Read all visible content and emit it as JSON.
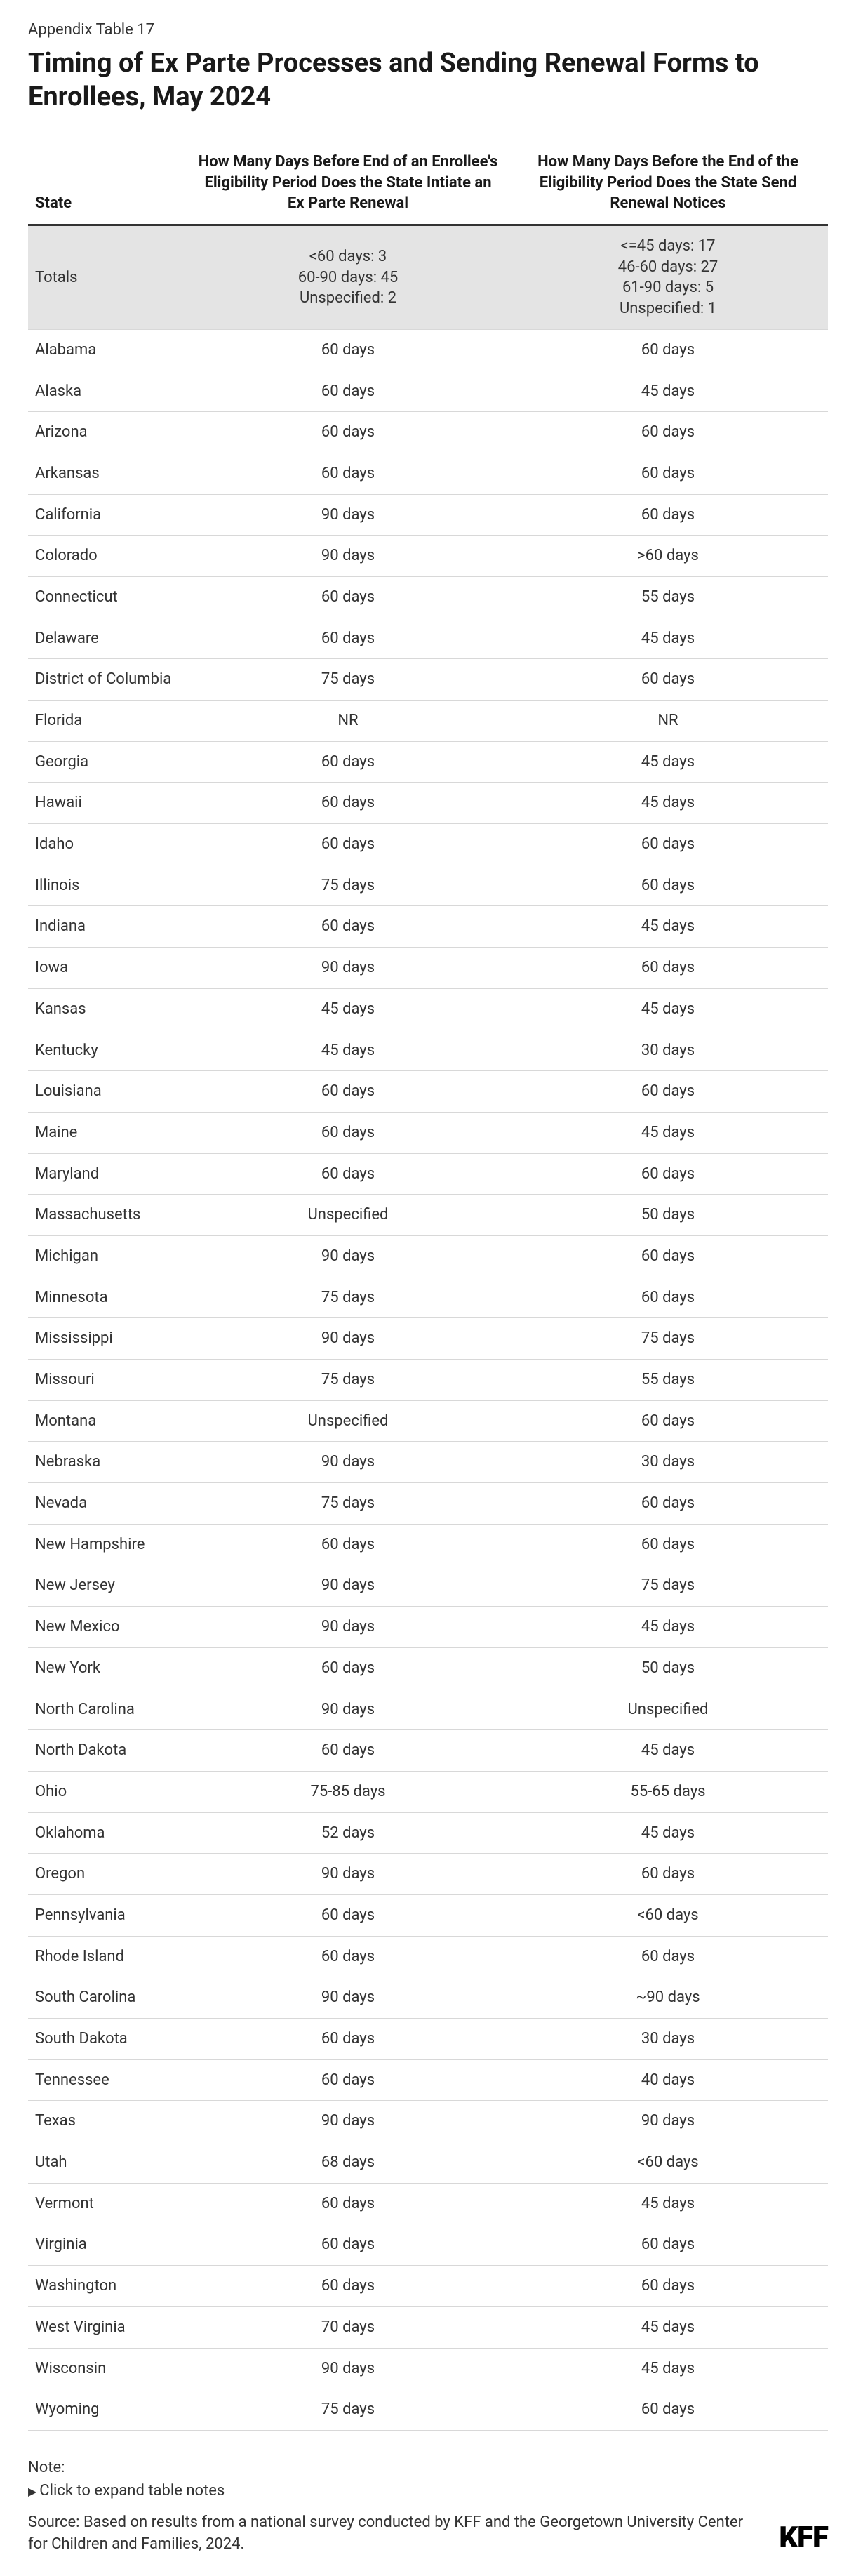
{
  "appendix_label": "Appendix Table 17",
  "title": "Timing of Ex Parte Processes and Sending Renewal Forms to Enrollees, May 2024",
  "columns": [
    "State",
    "How Many Days Before End of an Enrollee's Eligibility Period Does the State Intiate an Ex Parte Renewal",
    "How Many Days Before the End of the Eligibility Period Does the State Send Renewal Notices"
  ],
  "totals": {
    "label": "Totals",
    "col1": "<60 days: 3\n60-90 days: 45\nUnspecified: 2",
    "col2": "<=45 days: 17\n46-60 days: 27\n61-90 days: 5\nUnspecified: 1"
  },
  "rows": [
    {
      "state": "Alabama",
      "c1": "60 days",
      "c2": "60 days"
    },
    {
      "state": "Alaska",
      "c1": "60 days",
      "c2": "45 days"
    },
    {
      "state": "Arizona",
      "c1": "60 days",
      "c2": "60 days"
    },
    {
      "state": "Arkansas",
      "c1": "60 days",
      "c2": "60 days"
    },
    {
      "state": "California",
      "c1": "90 days",
      "c2": "60 days"
    },
    {
      "state": "Colorado",
      "c1": "90 days",
      "c2": ">60 days"
    },
    {
      "state": "Connecticut",
      "c1": "60 days",
      "c2": "55 days"
    },
    {
      "state": "Delaware",
      "c1": "60 days",
      "c2": "45 days"
    },
    {
      "state": "District of Columbia",
      "c1": "75 days",
      "c2": "60 days"
    },
    {
      "state": "Florida",
      "c1": "NR",
      "c2": "NR"
    },
    {
      "state": "Georgia",
      "c1": "60 days",
      "c2": "45 days"
    },
    {
      "state": "Hawaii",
      "c1": "60 days",
      "c2": "45 days"
    },
    {
      "state": "Idaho",
      "c1": "60 days",
      "c2": "60 days"
    },
    {
      "state": "Illinois",
      "c1": "75 days",
      "c2": "60 days"
    },
    {
      "state": "Indiana",
      "c1": "60 days",
      "c2": "45 days"
    },
    {
      "state": "Iowa",
      "c1": "90 days",
      "c2": "60 days"
    },
    {
      "state": "Kansas",
      "c1": "45 days",
      "c2": "45 days"
    },
    {
      "state": "Kentucky",
      "c1": "45 days",
      "c2": "30 days"
    },
    {
      "state": "Louisiana",
      "c1": "60 days",
      "c2": "60 days"
    },
    {
      "state": "Maine",
      "c1": "60 days",
      "c2": "45 days"
    },
    {
      "state": "Maryland",
      "c1": "60 days",
      "c2": "60 days"
    },
    {
      "state": "Massachusetts",
      "c1": "Unspecified",
      "c2": "50 days"
    },
    {
      "state": "Michigan",
      "c1": "90 days",
      "c2": "60 days"
    },
    {
      "state": "Minnesota",
      "c1": "75 days",
      "c2": "60 days"
    },
    {
      "state": "Mississippi",
      "c1": "90 days",
      "c2": "75 days"
    },
    {
      "state": "Missouri",
      "c1": "75 days",
      "c2": "55 days"
    },
    {
      "state": "Montana",
      "c1": "Unspecified",
      "c2": "60 days"
    },
    {
      "state": "Nebraska",
      "c1": "90 days",
      "c2": "30 days"
    },
    {
      "state": "Nevada",
      "c1": "75 days",
      "c2": "60 days"
    },
    {
      "state": "New Hampshire",
      "c1": "60 days",
      "c2": "60 days"
    },
    {
      "state": "New Jersey",
      "c1": "90 days",
      "c2": "75 days"
    },
    {
      "state": "New Mexico",
      "c1": "90 days",
      "c2": "45 days"
    },
    {
      "state": "New York",
      "c1": "60 days",
      "c2": "50 days"
    },
    {
      "state": "North Carolina",
      "c1": "90 days",
      "c2": "Unspecified"
    },
    {
      "state": "North Dakota",
      "c1": "60 days",
      "c2": "45 days"
    },
    {
      "state": "Ohio",
      "c1": "75-85 days",
      "c2": "55-65 days"
    },
    {
      "state": "Oklahoma",
      "c1": "52 days",
      "c2": "45 days"
    },
    {
      "state": "Oregon",
      "c1": "90 days",
      "c2": "60 days"
    },
    {
      "state": "Pennsylvania",
      "c1": "60 days",
      "c2": "<60 days"
    },
    {
      "state": "Rhode Island",
      "c1": "60 days",
      "c2": "60 days"
    },
    {
      "state": "South Carolina",
      "c1": "90 days",
      "c2": "~90 days"
    },
    {
      "state": "South Dakota",
      "c1": "60 days",
      "c2": "30 days"
    },
    {
      "state": "Tennessee",
      "c1": "60 days",
      "c2": "40 days"
    },
    {
      "state": "Texas",
      "c1": "90 days",
      "c2": "90 days"
    },
    {
      "state": "Utah",
      "c1": "68 days",
      "c2": "<60 days"
    },
    {
      "state": "Vermont",
      "c1": "60 days",
      "c2": "45 days"
    },
    {
      "state": "Virginia",
      "c1": "60 days",
      "c2": "60 days"
    },
    {
      "state": "Washington",
      "c1": "60 days",
      "c2": "60 days"
    },
    {
      "state": "West Virginia",
      "c1": "70 days",
      "c2": "45 days"
    },
    {
      "state": "Wisconsin",
      "c1": "90 days",
      "c2": "45 days"
    },
    {
      "state": "Wyoming",
      "c1": "75 days",
      "c2": "60 days"
    }
  ],
  "note_label": "Note:",
  "note_toggle": "Click to expand table notes",
  "source": "Source: Based on results from a national survey conducted by KFF and the Georgetown University Center for Children and Families, 2024.",
  "brand": "KFF"
}
